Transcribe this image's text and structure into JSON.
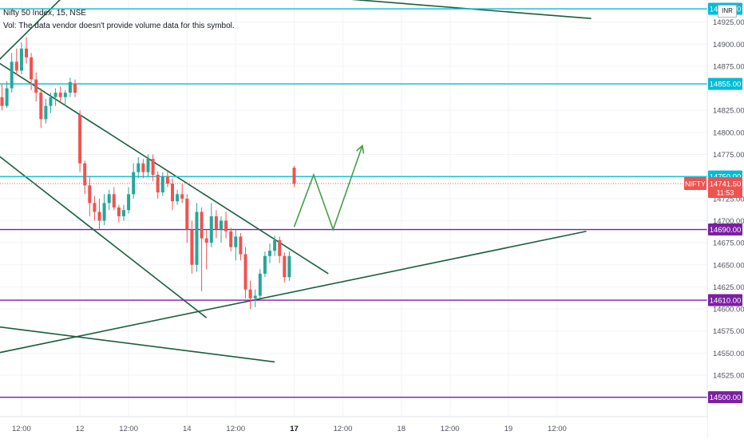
{
  "legend": {
    "symbol_line": "Nifty 50 Index, 15, NSE",
    "volume_note": "Vol: The data vendor doesn't provide volume data for this symbol."
  },
  "currency_badge": "INR",
  "chart_data": {
    "type": "candlestick",
    "symbol": "NIFTY",
    "last_price": "14741.50",
    "countdown": "11:53",
    "colors": {
      "up": "#26a69a",
      "down": "#ef5350",
      "trendline": "#1b5e3b",
      "horizontal_level": "#00bcd4",
      "support_level": "#7b1fa2",
      "projection": "#43a047",
      "last_price": "#ef5350"
    },
    "y_range": [
      14478,
      14950
    ],
    "y_ticks": [
      14925,
      14900,
      14875,
      14825,
      14800,
      14775,
      14725,
      14700,
      14675,
      14650,
      14625,
      14600,
      14575,
      14550,
      14525
    ],
    "x_ticks": [
      {
        "label": "12:00",
        "bar": 4
      },
      {
        "label": "12",
        "bar": 16
      },
      {
        "label": "12:00",
        "bar": 26
      },
      {
        "label": "14",
        "bar": 38
      },
      {
        "label": "12:00",
        "bar": 48
      },
      {
        "label": "17",
        "bar": 60,
        "bold": true
      },
      {
        "label": "12:00",
        "bar": 70
      },
      {
        "label": "18",
        "bar": 82
      },
      {
        "label": "12:00",
        "bar": 92
      },
      {
        "label": "19",
        "bar": 104
      },
      {
        "label": "12:00",
        "bar": 114
      }
    ],
    "candles": [
      [
        14840,
        14855,
        14825,
        14830
      ],
      [
        14830,
        14858,
        14828,
        14850
      ],
      [
        14850,
        14890,
        14845,
        14880
      ],
      [
        14880,
        14895,
        14865,
        14870
      ],
      [
        14870,
        14902,
        14866,
        14895
      ],
      [
        14895,
        14908,
        14878,
        14885
      ],
      [
        14885,
        14890,
        14848,
        14860
      ],
      [
        14860,
        14868,
        14835,
        14845
      ],
      [
        14845,
        14850,
        14805,
        14815
      ],
      [
        14815,
        14838,
        14810,
        14830
      ],
      [
        14830,
        14845,
        14822,
        14840
      ],
      [
        14840,
        14850,
        14830,
        14845
      ],
      [
        14845,
        14852,
        14835,
        14840
      ],
      [
        14840,
        14848,
        14830,
        14845
      ],
      [
        14845,
        14862,
        14840,
        14857
      ],
      [
        14855,
        14860,
        14840,
        14845
      ],
      [
        14820,
        14825,
        14755,
        14765
      ],
      [
        14765,
        14768,
        14730,
        14740
      ],
      [
        14740,
        14750,
        14705,
        14720
      ],
      [
        14720,
        14728,
        14700,
        14710
      ],
      [
        14710,
        14725,
        14690,
        14700
      ],
      [
        14700,
        14730,
        14695,
        14720
      ],
      [
        14720,
        14735,
        14712,
        14730
      ],
      [
        14730,
        14738,
        14712,
        14715
      ],
      [
        14715,
        14718,
        14698,
        14705
      ],
      [
        14705,
        14718,
        14700,
        14712
      ],
      [
        14712,
        14738,
        14708,
        14730
      ],
      [
        14730,
        14765,
        14725,
        14755
      ],
      [
        14755,
        14772,
        14748,
        14765
      ],
      [
        14765,
        14770,
        14748,
        14755
      ],
      [
        14755,
        14775,
        14750,
        14770
      ],
      [
        14770,
        14775,
        14745,
        14752
      ],
      [
        14752,
        14756,
        14725,
        14732
      ],
      [
        14732,
        14755,
        14728,
        14750
      ],
      [
        14750,
        14756,
        14738,
        14742
      ],
      [
        14742,
        14748,
        14712,
        14722
      ],
      [
        14722,
        14735,
        14718,
        14730
      ],
      [
        14730,
        14742,
        14720,
        14725
      ],
      [
        14725,
        14730,
        14675,
        14690
      ],
      [
        14690,
        14700,
        14640,
        14650
      ],
      [
        14650,
        14720,
        14642,
        14710
      ],
      [
        14710,
        14715,
        14620,
        14680
      ],
      [
        14680,
        14690,
        14645,
        14675
      ],
      [
        14675,
        14720,
        14670,
        14705
      ],
      [
        14705,
        14712,
        14680,
        14690
      ],
      [
        14690,
        14705,
        14675,
        14700
      ],
      [
        14700,
        14710,
        14680,
        14688
      ],
      [
        14688,
        14692,
        14665,
        14670
      ],
      [
        14670,
        14690,
        14655,
        14682
      ],
      [
        14682,
        14686,
        14655,
        14662
      ],
      [
        14662,
        14670,
        14612,
        14622
      ],
      [
        14622,
        14632,
        14600,
        14612
      ],
      [
        14612,
        14622,
        14602,
        14615
      ],
      [
        14615,
        14645,
        14612,
        14640
      ],
      [
        14640,
        14665,
        14636,
        14660
      ],
      [
        14660,
        14674,
        14652,
        14666
      ],
      [
        14666,
        14683,
        14660,
        14678
      ],
      [
        14678,
        14682,
        14652,
        14660
      ],
      [
        14660,
        14664,
        14630,
        14636
      ],
      [
        14636,
        14665,
        14632,
        14660
      ],
      [
        14760,
        14762,
        14738,
        14742
      ]
    ],
    "projection_path": [
      {
        "bar": 60,
        "y": 14693
      },
      {
        "bar": 64,
        "y": 14752
      },
      {
        "bar": 68,
        "y": 14690
      },
      {
        "bar": 74,
        "y": 14785
      }
    ],
    "levels": [
      {
        "price": "14940.00",
        "y": 14940,
        "kind": "horizontal_level"
      },
      {
        "price": "14855.00",
        "y": 14855,
        "kind": "horizontal_level"
      },
      {
        "price": "14750.00",
        "y": 14750,
        "kind": "horizontal_level"
      },
      {
        "price": "14690.00",
        "y": 14690,
        "kind": "support_level"
      },
      {
        "price": "14610.00",
        "y": 14610,
        "kind": "support_level"
      },
      {
        "price": "14500.00",
        "y": 14500,
        "kind": "support_level"
      }
    ],
    "trendlines": [
      {
        "from": {
          "bar": -1,
          "y": 14880
        },
        "to": {
          "bar": 67,
          "y": 14640
        }
      },
      {
        "from": {
          "bar": -1,
          "y": 14775
        },
        "to": {
          "bar": 42,
          "y": 14590
        }
      },
      {
        "from": {
          "bar": -1,
          "y": 14550
        },
        "to": {
          "bar": 120,
          "y": 14688
        }
      },
      {
        "from": {
          "bar": -1,
          "y": 14580
        },
        "to": {
          "bar": 56,
          "y": 14540
        }
      },
      {
        "from": {
          "bar": 62,
          "y": 14955
        },
        "to": {
          "bar": 121,
          "y": 14929
        }
      },
      {
        "from": {
          "bar": -1,
          "y": 14880
        },
        "to": {
          "bar": 17,
          "y": 14978
        }
      }
    ]
  }
}
